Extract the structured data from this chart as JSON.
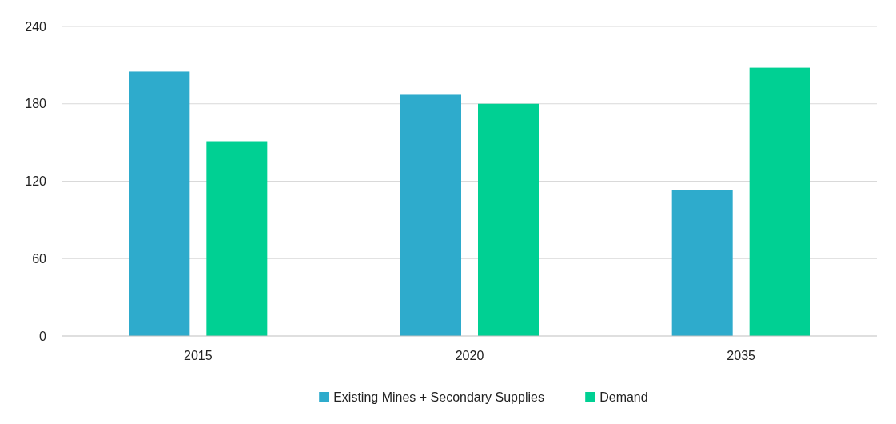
{
  "chart_data": {
    "type": "bar",
    "categories": [
      "2015",
      "2020",
      "2035"
    ],
    "series": [
      {
        "name": "Existing Mines + Secondary Supplies",
        "color": "#2eabcc",
        "values": [
          205,
          187,
          113
        ]
      },
      {
        "name": "Demand",
        "color": "#00d093",
        "values": [
          151,
          180,
          208
        ]
      }
    ],
    "ylim": [
      0,
      240
    ],
    "yticks": [
      0,
      60,
      120,
      180,
      240
    ],
    "grid": "y",
    "legend": "bottom"
  }
}
